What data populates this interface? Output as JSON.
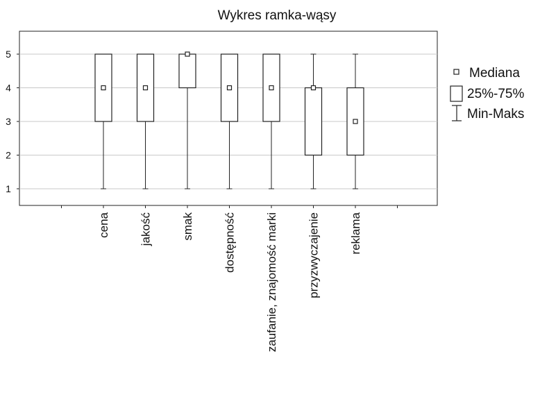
{
  "chart_data": {
    "type": "box",
    "title": "Wykres ramka-wąsy",
    "xlabel": "",
    "ylabel": "",
    "ylim": [
      0.5,
      5.5
    ],
    "yticks": [
      1,
      2,
      3,
      4,
      5
    ],
    "grid": true,
    "legend_position": "right",
    "legend": {
      "median": "Mediana",
      "box": "25%-75%",
      "whisker": "Min-Maks"
    },
    "categories": [
      "cena",
      "jakość",
      "smak",
      "dostępność",
      "zaufanie, znajomość marki",
      "przyzwyczajenie",
      "reklama"
    ],
    "series": [
      {
        "min": 1,
        "q1": 3,
        "median": 4,
        "q3": 5,
        "max": 5
      },
      {
        "min": 1,
        "q1": 3,
        "median": 4,
        "q3": 5,
        "max": 5
      },
      {
        "min": 1,
        "q1": 4,
        "median": 5,
        "q3": 5,
        "max": 5
      },
      {
        "min": 1,
        "q1": 3,
        "median": 4,
        "q3": 5,
        "max": 5
      },
      {
        "min": 1,
        "q1": 3,
        "median": 4,
        "q3": 5,
        "max": 5
      },
      {
        "min": 1,
        "q1": 2,
        "median": 4,
        "q3": 4,
        "max": 5
      },
      {
        "min": 1,
        "q1": 2,
        "median": 3,
        "q3": 4,
        "max": 5
      }
    ]
  }
}
